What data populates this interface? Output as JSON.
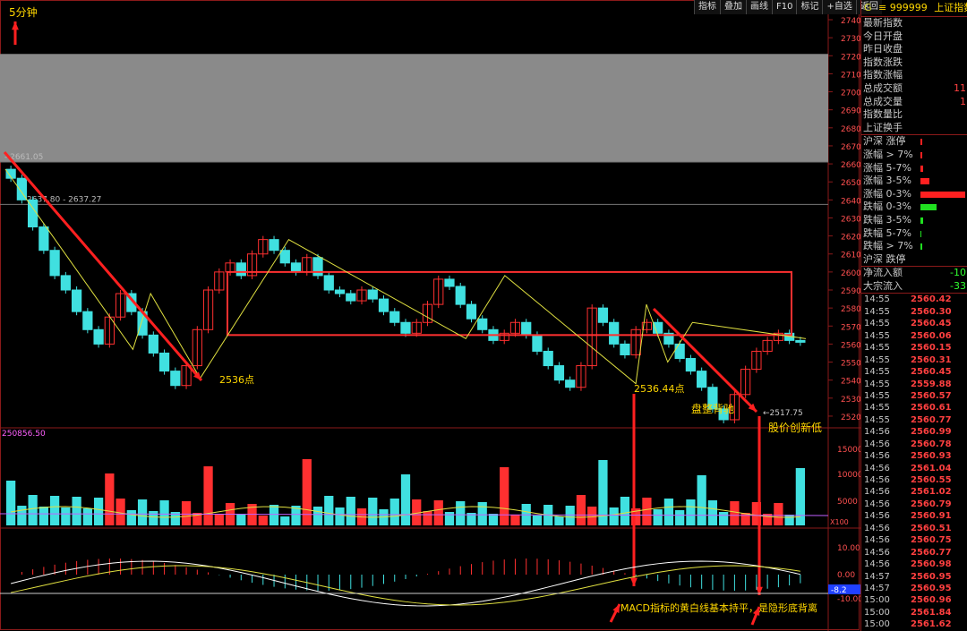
{
  "chart_data": {
    "type": "candlestick",
    "title": "5分钟",
    "price_axis": {
      "ylim": [
        2515,
        2742
      ],
      "ticks": [
        2520,
        2530,
        2540,
        2550,
        2560,
        2570,
        2580,
        2590,
        2600,
        2610,
        2620,
        2630,
        2640,
        2650,
        2660,
        2670,
        2680,
        2690,
        2700,
        2710,
        2720,
        2730,
        2740
      ]
    },
    "volume_axis": {
      "ticks": [
        5000,
        10000,
        15000
      ],
      "max_label": "250856.50",
      "multiplier": "X100"
    },
    "macd_axis": {
      "ticks": [
        "10.00",
        "0.00",
        "-10.00"
      ],
      "current": "-8.2"
    },
    "reference_lines": [
      {
        "label": "2661.05",
        "value": 2661.05
      },
      {
        "label": "2637.80 - 2637.27",
        "value": 2637.5
      }
    ],
    "gray_zone": [
      2661.05,
      2721
    ],
    "box": [
      2565,
      2600
    ],
    "zigzag_thin": [
      [
        0,
        2657
      ],
      [
        36,
        2557
      ],
      [
        41,
        2588
      ],
      [
        55,
        2541
      ],
      [
        80,
        2618
      ],
      [
        130,
        2563
      ],
      [
        141,
        2598
      ],
      [
        178,
        2538
      ],
      [
        181,
        2582
      ],
      [
        187,
        2550
      ],
      [
        194,
        2572
      ],
      [
        226,
        2563
      ]
    ],
    "annotations": {
      "low1": "2536点",
      "low2": "2536.44点",
      "low3": "2517.75",
      "consolidation": "盘整背驰",
      "new_low": "股价创新低",
      "macd_note": "MACD指标的黄白线基本持平，是隐形底背离"
    },
    "candles_seed": [
      [
        2657,
        2652
      ],
      [
        2652,
        2640
      ],
      [
        2640,
        2625
      ],
      [
        2625,
        2612
      ],
      [
        2612,
        2598
      ],
      [
        2598,
        2590
      ],
      [
        2590,
        2578
      ],
      [
        2578,
        2568
      ],
      [
        2568,
        2560
      ],
      [
        2560,
        2575
      ],
      [
        2575,
        2588
      ],
      [
        2588,
        2578
      ],
      [
        2578,
        2565
      ],
      [
        2565,
        2555
      ],
      [
        2555,
        2545
      ],
      [
        2545,
        2537
      ],
      [
        2537,
        2548
      ],
      [
        2548,
        2568
      ],
      [
        2568,
        2590
      ],
      [
        2590,
        2600
      ],
      [
        2600,
        2605
      ],
      [
        2605,
        2598
      ],
      [
        2598,
        2610
      ],
      [
        2610,
        2618
      ],
      [
        2618,
        2612
      ],
      [
        2612,
        2605
      ],
      [
        2605,
        2600
      ],
      [
        2600,
        2608
      ],
      [
        2608,
        2598
      ],
      [
        2598,
        2590
      ],
      [
        2590,
        2588
      ],
      [
        2588,
        2584
      ],
      [
        2584,
        2590
      ],
      [
        2590,
        2585
      ],
      [
        2585,
        2578
      ],
      [
        2578,
        2572
      ],
      [
        2572,
        2566
      ],
      [
        2566,
        2572
      ],
      [
        2572,
        2582
      ],
      [
        2582,
        2596
      ],
      [
        2596,
        2592
      ],
      [
        2592,
        2582
      ],
      [
        2582,
        2574
      ],
      [
        2574,
        2568
      ],
      [
        2568,
        2562
      ],
      [
        2562,
        2566
      ],
      [
        2566,
        2572
      ],
      [
        2572,
        2565
      ],
      [
        2565,
        2556
      ],
      [
        2556,
        2548
      ],
      [
        2548,
        2540
      ],
      [
        2540,
        2536
      ],
      [
        2536,
        2548
      ],
      [
        2548,
        2580
      ],
      [
        2580,
        2572
      ],
      [
        2572,
        2560
      ],
      [
        2560,
        2554
      ],
      [
        2554,
        2568
      ],
      [
        2568,
        2572
      ],
      [
        2572,
        2566
      ],
      [
        2566,
        2560
      ],
      [
        2560,
        2552
      ],
      [
        2552,
        2545
      ],
      [
        2545,
        2536
      ],
      [
        2536,
        2524
      ],
      [
        2524,
        2518
      ],
      [
        2518,
        2532
      ],
      [
        2532,
        2546
      ],
      [
        2546,
        2556
      ],
      [
        2556,
        2562
      ],
      [
        2562,
        2566
      ],
      [
        2566,
        2562
      ],
      [
        2562,
        2561
      ]
    ]
  },
  "toolbar": [
    "指标",
    "叠加",
    "画线",
    "F10",
    "标记",
    "+自选",
    "返回"
  ],
  "panel": {
    "g": "G",
    "code": "≡ 999999",
    "name": "上证指数",
    "rows": [
      {
        "label": "最新指数",
        "value": ""
      },
      {
        "label": "今日开盘",
        "value": ""
      },
      {
        "label": "昨日收盘",
        "value": ""
      },
      {
        "label": "指数涨跌",
        "value": ""
      },
      {
        "label": "指数涨幅",
        "value": ""
      },
      {
        "label": "总成交额",
        "value": "11"
      },
      {
        "label": "总成交量",
        "value": "1"
      },
      {
        "label": "指数量比",
        "value": ""
      },
      {
        "label": "上证换手",
        "value": ""
      }
    ],
    "breadth": [
      {
        "label": "沪深 涨停",
        "bar": 2
      },
      {
        "label": "涨幅 > 7%",
        "bar": 2
      },
      {
        "label": "涨幅 5-7%",
        "bar": 3
      },
      {
        "label": "涨幅 3-5%",
        "bar": 10
      },
      {
        "label": "涨幅 0-3%",
        "bar": 50
      },
      {
        "label": "跌幅 0-3%",
        "bar": 18,
        "green": true
      },
      {
        "label": "跌幅 3-5%",
        "bar": 3,
        "green": true
      },
      {
        "label": "跌幅 5-7%",
        "bar": 1,
        "green": true
      },
      {
        "label": "跌幅 > 7%",
        "bar": 2,
        "green": true
      },
      {
        "label": "沪深 跌停",
        "bar": 0,
        "green": true
      }
    ],
    "flow": [
      {
        "label": "净流入额",
        "value": "-10"
      },
      {
        "label": "大宗流入",
        "value": "-33"
      }
    ],
    "ticks": [
      [
        "14:55",
        "2560.42"
      ],
      [
        "14:55",
        "2560.30"
      ],
      [
        "14:55",
        "2560.45"
      ],
      [
        "14:55",
        "2560.06"
      ],
      [
        "14:55",
        "2560.15"
      ],
      [
        "14:55",
        "2560.31"
      ],
      [
        "14:55",
        "2560.45"
      ],
      [
        "14:55",
        "2559.88"
      ],
      [
        "14:55",
        "2560.57"
      ],
      [
        "14:55",
        "2560.61"
      ],
      [
        "14:55",
        "2560.77"
      ],
      [
        "14:56",
        "2560.99"
      ],
      [
        "14:56",
        "2560.78"
      ],
      [
        "14:56",
        "2560.93"
      ],
      [
        "14:56",
        "2561.04"
      ],
      [
        "14:56",
        "2560.55"
      ],
      [
        "14:56",
        "2561.02"
      ],
      [
        "14:56",
        "2560.79"
      ],
      [
        "14:56",
        "2560.91"
      ],
      [
        "14:56",
        "2560.51"
      ],
      [
        "14:56",
        "2560.75"
      ],
      [
        "14:56",
        "2560.77"
      ],
      [
        "14:56",
        "2560.98"
      ],
      [
        "14:57",
        "2560.95"
      ],
      [
        "14:57",
        "2560.95"
      ],
      [
        "15:00",
        "2560.96"
      ],
      [
        "15:00",
        "2561.84"
      ],
      [
        "15:00",
        "2561.62"
      ]
    ]
  }
}
